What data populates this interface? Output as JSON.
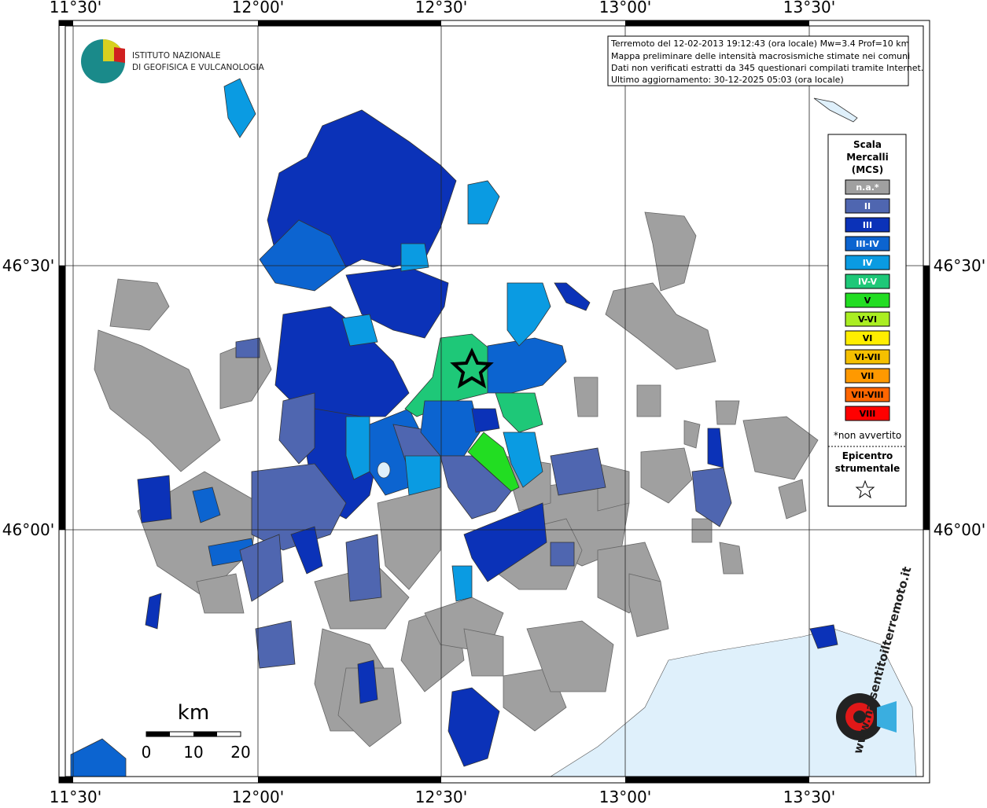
{
  "logo": {
    "lines": [
      "ISTITUTO NAZIONALE",
      "DI GEOFISICA E VULCANOLOGIA"
    ]
  },
  "info": {
    "lines": [
      "Terremoto del 12-02-2013 19:12:43 (ora locale) Mw=3.4 Prof=10 km",
      "Mappa preliminare delle intensità macrosismiche stimate nei comuni",
      "Dati non verificati estratti da 345 questionari compilati tramite Internet.",
      "Ultimo aggiornamento: 30-12-2025 05:03 (ora locale)"
    ]
  },
  "axes": {
    "lon_labels": [
      "11°30'",
      "12°00'",
      "12°30'",
      "13°00'",
      "13°30'"
    ],
    "lat_labels": [
      "46°30'",
      "46°00'"
    ]
  },
  "legend": {
    "title_lines": [
      "Scala",
      "Mercalli",
      "(MCS)"
    ],
    "classes": [
      {
        "label": "n.a.*",
        "color": "#a0a0a0"
      },
      {
        "label": "II",
        "color": "#4f66b0"
      },
      {
        "label": "III",
        "color": "#0b32b8"
      },
      {
        "label": "III-IV",
        "color": "#0c64d0"
      },
      {
        "label": "IV",
        "color": "#0a9be2"
      },
      {
        "label": "IV-V",
        "color": "#1ec878"
      },
      {
        "label": "V",
        "color": "#22dd22"
      },
      {
        "label": "V-VI",
        "color": "#aaee22"
      },
      {
        "label": "VI",
        "color": "#ffee00"
      },
      {
        "label": "VI-VII",
        "color": "#f5c000"
      },
      {
        "label": "VII",
        "color": "#ff9900"
      },
      {
        "label": "VII-VIII",
        "color": "#ff6600"
      },
      {
        "label": "VIII",
        "color": "#ff0000"
      }
    ],
    "note": "*non avvertito",
    "epicenter_lines": [
      "Epicentro",
      "strumentale"
    ]
  },
  "scale_bar": {
    "unit": "km",
    "ticks": [
      0,
      10,
      20
    ]
  },
  "watermark": "www.haisentitoilterremoto.it"
}
